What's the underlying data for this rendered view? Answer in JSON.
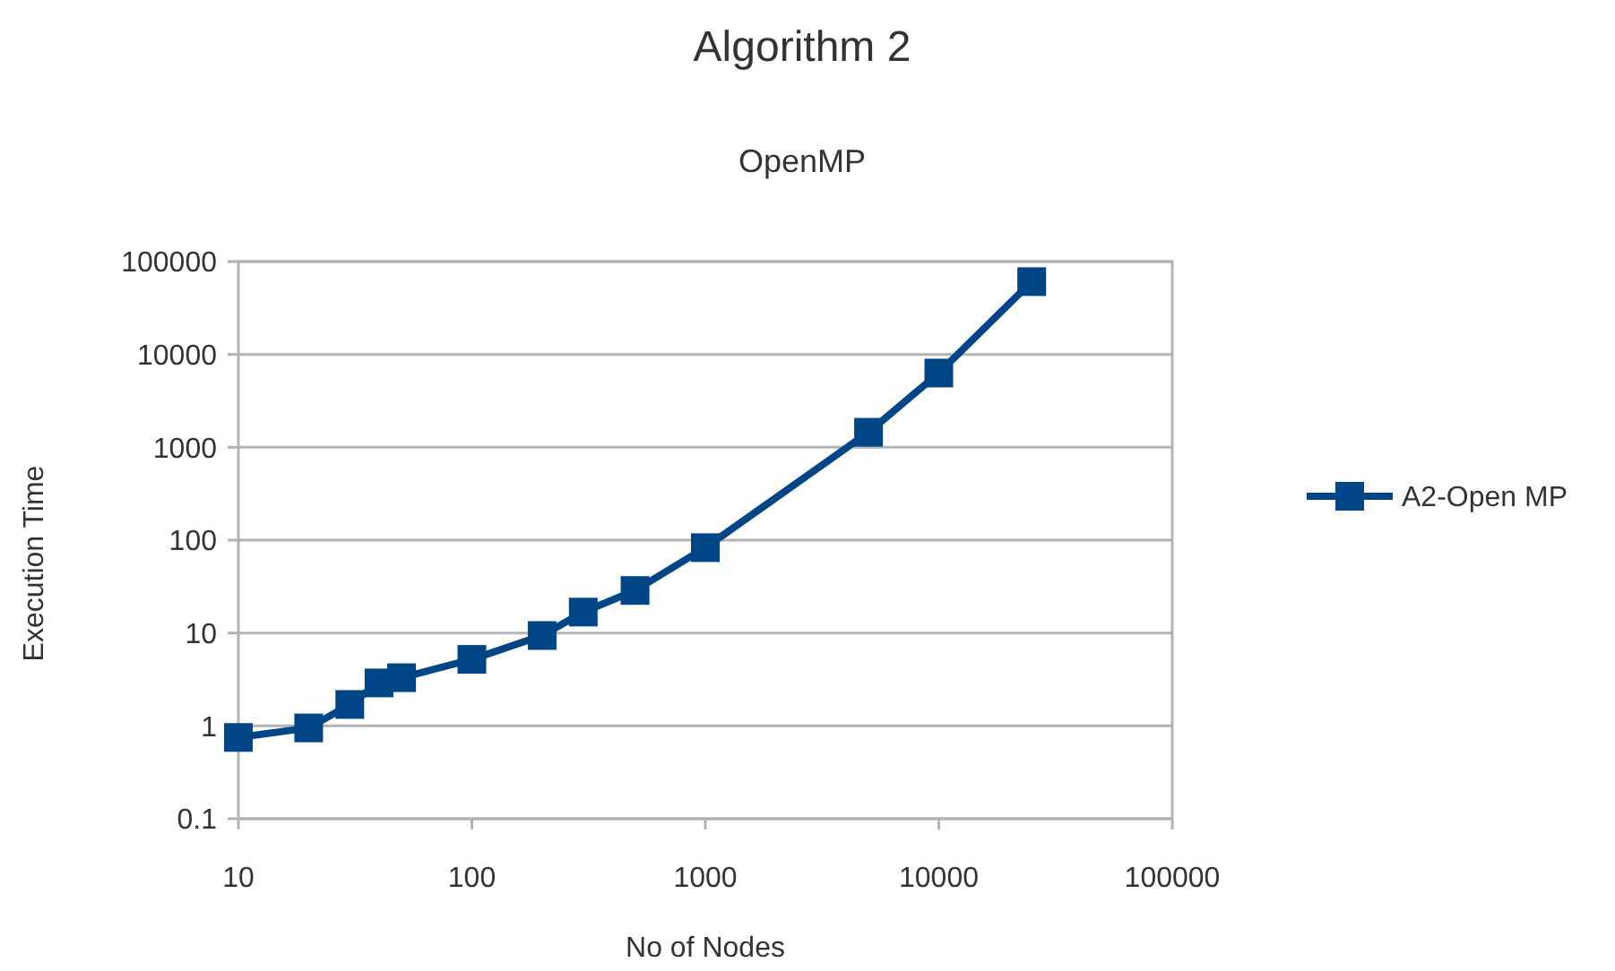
{
  "chart_data": {
    "type": "line",
    "title": "Algorithm 2",
    "subtitle": "OpenMP",
    "xlabel": "No of Nodes",
    "ylabel": "Execution Time",
    "x": [
      10,
      20,
      30,
      40,
      50,
      100,
      200,
      300,
      500,
      1000,
      5000,
      10000,
      25000
    ],
    "series": [
      {
        "name": "A2-Open MP",
        "color": "#004586",
        "values": [
          0.75,
          0.95,
          1.7,
          2.9,
          3.3,
          5.2,
          9.4,
          16.8,
          28.7,
          83,
          1450,
          6300,
          60800
        ]
      }
    ],
    "log": "xy",
    "xlim": [
      10,
      100000
    ],
    "ylim": [
      0.1,
      100000
    ],
    "xticks": [
      10,
      100,
      1000,
      10000,
      100000
    ],
    "yticks": [
      0.1,
      1,
      10,
      100,
      1000,
      10000,
      100000
    ],
    "grid": "y",
    "legend": "right",
    "marker": "square",
    "line_style": "solid"
  }
}
